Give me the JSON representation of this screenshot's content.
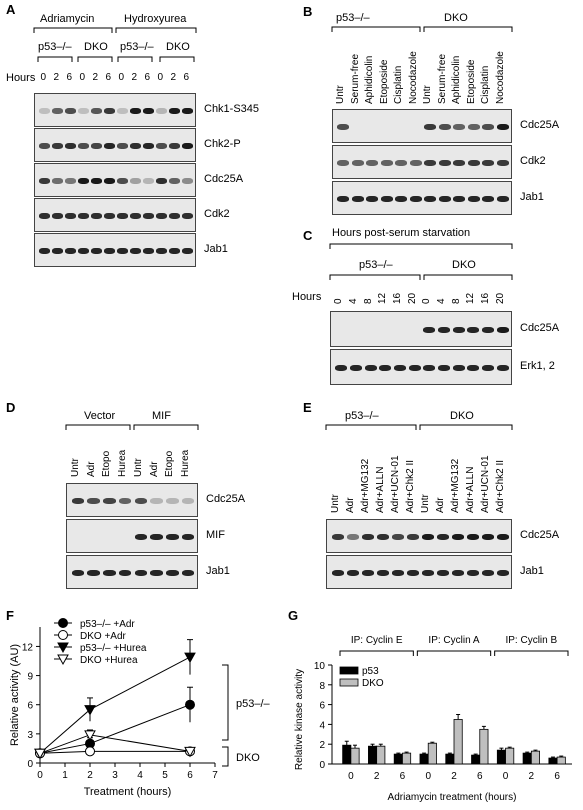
{
  "panelA": {
    "letter": "A",
    "groups": [
      "Adriamycin",
      "Hydroxyurea"
    ],
    "subgroups": [
      "p53–/–",
      "DKO",
      "p53–/–",
      "DKO"
    ],
    "hours_label": "Hours",
    "lanes": [
      "0",
      "2",
      "6",
      "0",
      "2",
      "6",
      "0",
      "2",
      "6",
      "0",
      "2",
      "6"
    ],
    "blots": [
      {
        "label": "Chk1-S345",
        "intensity": [
          0.05,
          0.5,
          0.6,
          0.05,
          0.55,
          0.7,
          0.05,
          0.9,
          0.95,
          0.1,
          0.95,
          1.0
        ]
      },
      {
        "label": "Chk2-P",
        "intensity": [
          0.6,
          0.7,
          0.75,
          0.6,
          0.65,
          0.8,
          0.6,
          0.75,
          0.8,
          0.6,
          0.7,
          0.85
        ]
      },
      {
        "label": "Cdc25A",
        "intensity": [
          0.7,
          0.45,
          0.4,
          0.85,
          0.9,
          0.85,
          0.6,
          0.2,
          0.1,
          0.75,
          0.5,
          0.3
        ]
      },
      {
        "label": "Cdk2",
        "intensity": [
          0.75,
          0.75,
          0.75,
          0.75,
          0.75,
          0.75,
          0.75,
          0.75,
          0.75,
          0.75,
          0.75,
          0.75
        ]
      },
      {
        "label": "Jab1",
        "intensity": [
          0.8,
          0.8,
          0.8,
          0.8,
          0.8,
          0.8,
          0.8,
          0.8,
          0.8,
          0.8,
          0.8,
          0.8
        ]
      }
    ]
  },
  "panelB": {
    "letter": "B",
    "groups": [
      "p53–/–",
      "DKO"
    ],
    "lanes": [
      "Untr",
      "Serum-free",
      "Aphidicolin",
      "Etoposide",
      "Cisplatin",
      "Nocodazole",
      "Untr",
      "Serum-free",
      "Aphidicolin",
      "Etoposide",
      "Cisplatin",
      "Nocodazole"
    ],
    "blots": [
      {
        "label": "Cdc25A",
        "intensity": [
          0.6,
          0,
          0,
          0,
          0,
          0,
          0.7,
          0.6,
          0.5,
          0.5,
          0.6,
          0.9
        ]
      },
      {
        "label": "Cdk2",
        "intensity": [
          0.5,
          0.5,
          0.5,
          0.5,
          0.5,
          0.5,
          0.7,
          0.7,
          0.7,
          0.7,
          0.7,
          0.7
        ]
      },
      {
        "label": "Jab1",
        "intensity": [
          0.8,
          0.8,
          0.8,
          0.8,
          0.8,
          0.8,
          0.8,
          0.8,
          0.8,
          0.8,
          0.8,
          0.8
        ]
      }
    ]
  },
  "panelC": {
    "letter": "C",
    "title": "Hours post-serum starvation",
    "groups": [
      "p53–/–",
      "DKO"
    ],
    "hours_label": "Hours",
    "lanes": [
      "0",
      "4",
      "8",
      "12",
      "16",
      "20",
      "0",
      "4",
      "8",
      "12",
      "16",
      "20"
    ],
    "blots": [
      {
        "label": "Cdc25A",
        "intensity": [
          0,
          0,
          0,
          0,
          0,
          0,
          0.8,
          0.8,
          0.8,
          0.8,
          0.8,
          0.85
        ]
      },
      {
        "label": "Erk1, 2",
        "intensity": [
          0.8,
          0.8,
          0.8,
          0.8,
          0.8,
          0.8,
          0.8,
          0.8,
          0.8,
          0.8,
          0.8,
          0.8
        ]
      }
    ]
  },
  "panelD": {
    "letter": "D",
    "groups": [
      "Vector",
      "MIF"
    ],
    "lanes": [
      "Untr",
      "Adr",
      "Etopo",
      "Hurea",
      "Untr",
      "Adr",
      "Etopo",
      "Hurea"
    ],
    "blots": [
      {
        "label": "Cdc25A",
        "intensity": [
          0.7,
          0.6,
          0.65,
          0.5,
          0.6,
          0.1,
          0.1,
          0.1
        ]
      },
      {
        "label": "MIF",
        "intensity": [
          0,
          0,
          0,
          0,
          0.8,
          0.8,
          0.8,
          0.8
        ]
      },
      {
        "label": "Jab1",
        "intensity": [
          0.8,
          0.8,
          0.8,
          0.8,
          0.8,
          0.8,
          0.8,
          0.8
        ]
      }
    ]
  },
  "panelE": {
    "letter": "E",
    "groups": [
      "p53–/–",
      "DKO"
    ],
    "lanes": [
      "Untr",
      "Adr",
      "Adr+MG132",
      "Adr+ALLN",
      "Adr+UCN-01",
      "Adr+Chk2 II",
      "Untr",
      "Adr",
      "Adr+MG132",
      "Adr+ALLN",
      "Adr+UCN-01",
      "Adr+Chk2 II"
    ],
    "blots": [
      {
        "label": "Cdc25A",
        "intensity": [
          0.7,
          0.4,
          0.75,
          0.75,
          0.65,
          0.7,
          0.9,
          0.8,
          0.95,
          0.95,
          0.9,
          0.9
        ]
      },
      {
        "label": "Jab1",
        "intensity": [
          0.8,
          0.8,
          0.8,
          0.8,
          0.8,
          0.8,
          0.8,
          0.8,
          0.8,
          0.8,
          0.8,
          0.8
        ]
      }
    ]
  },
  "panelF": {
    "letter": "F",
    "chart_data": {
      "type": "line",
      "xlabel": "Treatment (hours)",
      "ylabel": "Relative activity (AU)",
      "xlim": [
        0,
        7
      ],
      "ylim": [
        0,
        14
      ],
      "xticks": [
        "0",
        "1",
        "2",
        "3",
        "4",
        "5",
        "6",
        "7"
      ],
      "yticks": [
        "0",
        "3",
        "6",
        "9",
        "12"
      ],
      "series": [
        {
          "name": "p53–/– +Adr",
          "marker": "filled-circle",
          "x": [
            0,
            2,
            6
          ],
          "y": [
            1,
            2,
            6
          ],
          "err": [
            0.3,
            0.6,
            1.8
          ]
        },
        {
          "name": "DKO +Adr",
          "marker": "open-circle",
          "x": [
            0,
            2,
            6
          ],
          "y": [
            1,
            1.2,
            1.2
          ],
          "err": [
            0.2,
            0.3,
            0.3
          ]
        },
        {
          "name": "p53–/– +Hurea",
          "marker": "filled-triangle",
          "x": [
            0,
            2,
            6
          ],
          "y": [
            1,
            5.5,
            10.9
          ],
          "err": [
            0.3,
            1.2,
            1.8
          ]
        },
        {
          "name": "DKO +Hurea",
          "marker": "open-triangle",
          "x": [
            0,
            2,
            6
          ],
          "y": [
            1,
            2.9,
            1.2
          ],
          "err": [
            0.2,
            0.5,
            0.3
          ]
        }
      ],
      "brackets": [
        "p53–/–",
        "DKO"
      ],
      "legend": "top-left"
    }
  },
  "panelG": {
    "letter": "G",
    "chart_data": {
      "type": "bar",
      "xlabel": "Adriamycin treatment (hours)",
      "ylabel": "Relative kinase activity",
      "ylim": [
        0,
        10
      ],
      "yticks": [
        "0",
        "2",
        "4",
        "6",
        "8",
        "10"
      ],
      "groups": [
        "IP: Cyclin E",
        "IP: Cyclin A",
        "IP: Cyclin B"
      ],
      "categories": [
        "0",
        "2",
        "6",
        "0",
        "2",
        "6",
        "0",
        "2",
        "6"
      ],
      "series": [
        {
          "name": "p53",
          "color": "#000000",
          "values": [
            1.9,
            1.8,
            1.0,
            1.0,
            1.0,
            0.9,
            1.4,
            1.1,
            0.6
          ],
          "err": [
            0.4,
            0.2,
            0.1,
            0.1,
            0.1,
            0.1,
            0.2,
            0.1,
            0.1
          ]
        },
        {
          "name": "DKO",
          "color": "#bfbfbf",
          "values": [
            1.6,
            1.8,
            1.1,
            2.1,
            4.5,
            3.5,
            1.6,
            1.3,
            0.7
          ],
          "err": [
            0.3,
            0.2,
            0.1,
            0.1,
            0.5,
            0.3,
            0.1,
            0.1,
            0.1
          ]
        }
      ],
      "legend": "top-left"
    }
  }
}
